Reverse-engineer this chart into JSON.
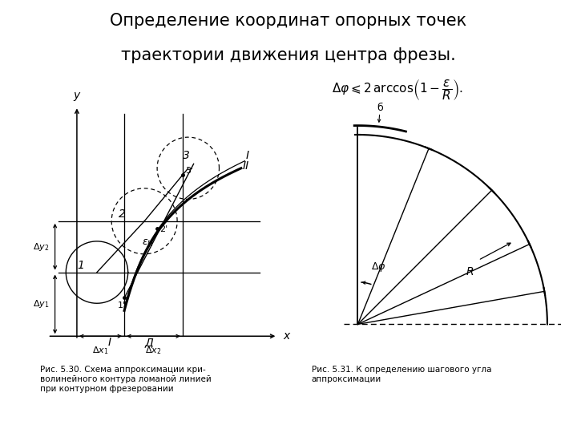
{
  "title_line1": "Определение координат опорных точек",
  "title_line2": "траектории движения центра фрезы.",
  "title_fontsize": 15,
  "bg_color": "#ffffff",
  "fig1_caption": "Рис. 5.30. Схема аппроксимации кри-\nволинейного контура ломаной линией\nпри контурном фрезеровании",
  "fig2_caption": "Рис. 5.31. К определению шагового угла\nаппроксимации"
}
